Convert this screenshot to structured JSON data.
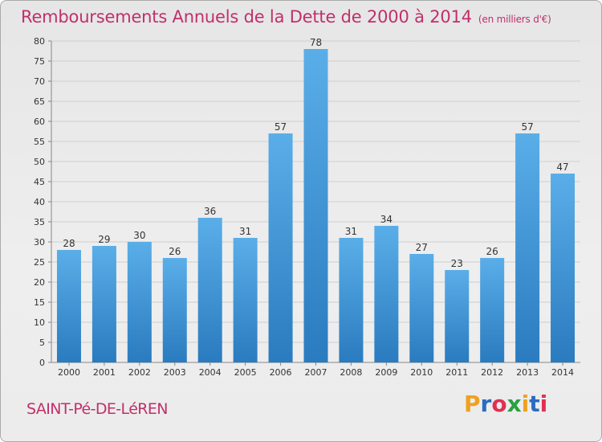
{
  "header": {
    "title": "Remboursements Annuels de la Dette de 2000 à 2014",
    "unit": "(en milliers d'€)"
  },
  "footer": {
    "location": "SAINT-Pé-DE-LéREN",
    "logo_text": "Proxiti"
  },
  "colors": {
    "title": "#c0306a",
    "bar_top": "#5aaee8",
    "bar_bottom": "#2a7bbf",
    "logo_letters": [
      "#f0a020",
      "#2a6cc0",
      "#e03050",
      "#2aa040",
      "#f0a020",
      "#2a6cc0",
      "#e03050"
    ]
  },
  "chart_data": {
    "type": "bar",
    "categories": [
      "2000",
      "2001",
      "2002",
      "2003",
      "2004",
      "2005",
      "2006",
      "2007",
      "2008",
      "2009",
      "2010",
      "2011",
      "2012",
      "2013",
      "2014"
    ],
    "values": [
      28,
      29,
      30,
      26,
      36,
      31,
      57,
      78,
      31,
      34,
      27,
      23,
      26,
      57,
      47
    ],
    "title": "Remboursements Annuels de la Dette de 2000 à 2014",
    "ylim": [
      0,
      80
    ],
    "yticks": [
      0,
      5,
      10,
      15,
      20,
      25,
      30,
      35,
      40,
      45,
      50,
      55,
      60,
      65,
      70,
      75,
      80
    ],
    "grid": true
  }
}
